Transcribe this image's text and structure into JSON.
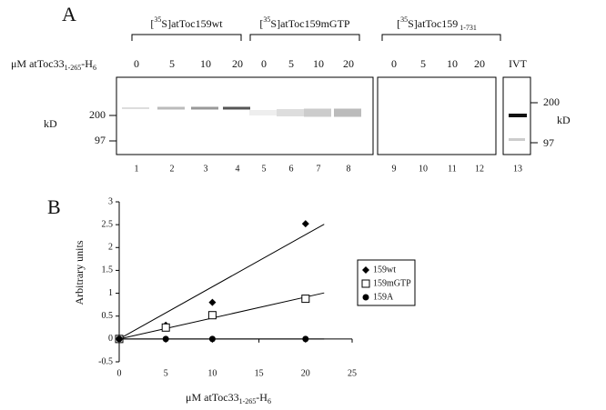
{
  "panel_a": {
    "label": "A",
    "groups": [
      [
        {
          "text": "["
        },
        {
          "text": "35",
          "sup": true
        },
        {
          "text": "S]atToc159wt"
        }
      ],
      [
        {
          "text": "["
        },
        {
          "text": "35",
          "sup": true
        },
        {
          "text": "S]atToc159mGTP"
        }
      ],
      [
        {
          "text": "["
        },
        {
          "text": "35",
          "sup": true
        },
        {
          "text": "S]atToc159"
        },
        {
          "text": " 1-731",
          "sub": true
        }
      ]
    ],
    "conc_label": [
      {
        "text": "μM atToc33"
      },
      {
        "text": "1-265",
        "sub": true
      },
      {
        "text": "-H"
      },
      {
        "text": "6",
        "sub": true
      }
    ],
    "concentrations": [
      0,
      5,
      10,
      20,
      0,
      5,
      10,
      20,
      0,
      5,
      10,
      20,
      "IVT"
    ],
    "lanes": [
      1,
      2,
      3,
      4,
      5,
      6,
      7,
      8,
      9,
      10,
      11,
      12,
      13
    ],
    "left_unit": "kD",
    "left_markers": [
      "200",
      "97"
    ],
    "right_unit": "kD",
    "right_markers": [
      "200",
      "97"
    ]
  },
  "chart_data": {
    "type": "scatter",
    "panel_label": "B",
    "x_label": [
      {
        "text": "μM atToc33"
      },
      {
        "text": "1-265",
        "sub": true
      },
      {
        "text": "-H"
      },
      {
        "text": "6",
        "sub": true
      }
    ],
    "y_label": "Arbitrary units",
    "xlim": [
      0,
      25
    ],
    "xticks": [
      0,
      5,
      10,
      15,
      20,
      25
    ],
    "ylim": [
      -0.5,
      3
    ],
    "yticks": [
      -0.5,
      0,
      0.5,
      1,
      1.5,
      2,
      2.5,
      3
    ],
    "legend": "right",
    "trendlines": true,
    "series": [
      {
        "name": "159wt",
        "marker": "diamond",
        "color": "#000000",
        "x": [
          0,
          5,
          10,
          20
        ],
        "values": [
          0,
          0.3,
          0.8,
          2.52
        ]
      },
      {
        "name": "159mGTP",
        "marker": "open-square",
        "color": "#000000",
        "x": [
          0,
          5,
          10,
          20
        ],
        "values": [
          0,
          0.25,
          0.52,
          0.88
        ]
      },
      {
        "name": "159A",
        "marker": "circle",
        "color": "#000000",
        "x": [
          0,
          5,
          10,
          20
        ],
        "values": [
          0,
          0,
          0,
          0
        ]
      }
    ]
  }
}
